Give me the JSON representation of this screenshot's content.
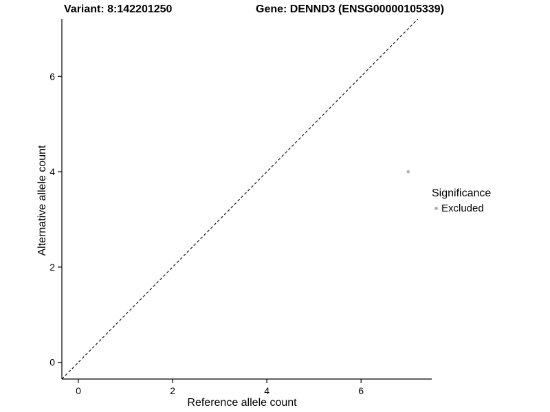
{
  "chart_data": {
    "type": "scatter",
    "title_left": "Variant: 8:142201250",
    "title_right": "Gene: DENND3 (ENSG00000105339)",
    "xlabel": "Reference allele count",
    "ylabel": "Alternative allele count",
    "xlim": [
      -0.35,
      7.5
    ],
    "ylim": [
      -0.35,
      7.2
    ],
    "xticks": [
      0,
      2,
      4,
      6
    ],
    "yticks": [
      0,
      2,
      4,
      6
    ],
    "grid": false,
    "identity_line": {
      "style": "dashed",
      "from": [
        -0.35,
        -0.35
      ],
      "to": [
        7.35,
        7.35
      ],
      "color": "#000000"
    },
    "points": [
      {
        "x": 7,
        "y": 4,
        "significance": "Excluded"
      }
    ],
    "point_color": "#b3b3b3",
    "legend": {
      "title": "Significance",
      "position": "right",
      "items": [
        {
          "label": "Excluded",
          "color": "#b3b3b3"
        }
      ]
    }
  }
}
